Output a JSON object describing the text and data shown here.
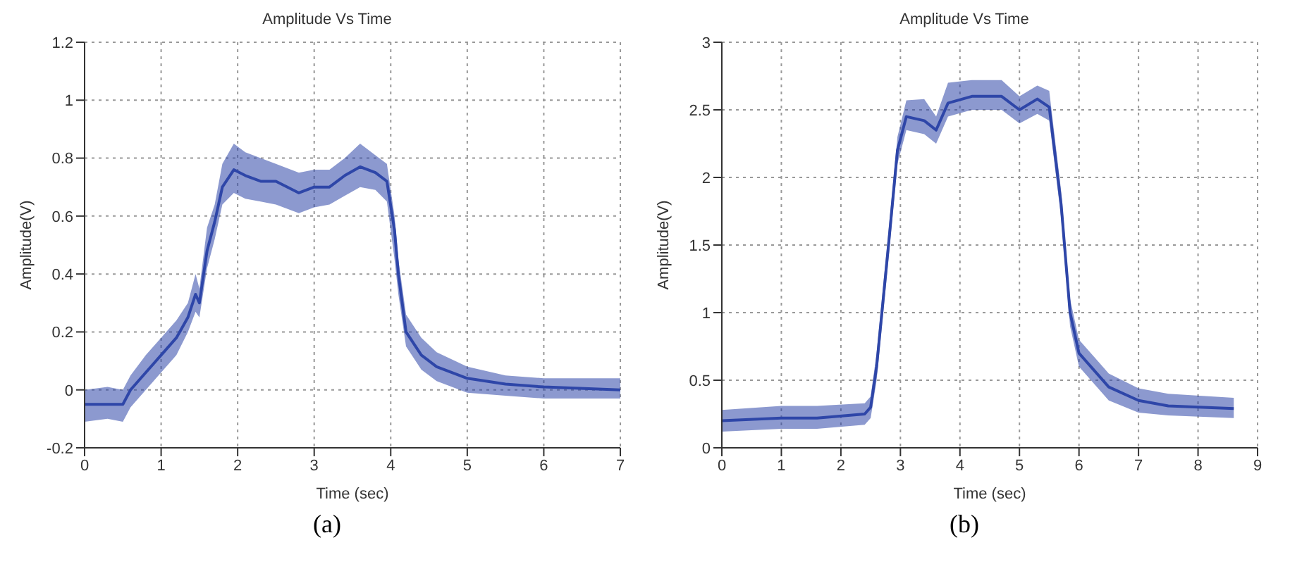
{
  "chart_data": [
    {
      "type": "line",
      "title": "Amplitude Vs Time",
      "xlabel": "Time (sec)",
      "ylabel": "Amplitude(V)",
      "annotations": [
        "(a)"
      ],
      "grid": true,
      "xlim": [
        0,
        7
      ],
      "xticks": [
        0,
        1,
        2,
        3,
        4,
        5,
        6,
        7
      ],
      "ylim": [
        -0.2,
        1.2
      ],
      "yticks": [
        -0.2,
        0,
        0.2,
        0.4,
        0.6,
        0.8,
        1,
        1.2
      ],
      "x": [
        0,
        0.3,
        0.5,
        0.6,
        0.8,
        1.0,
        1.2,
        1.35,
        1.45,
        1.5,
        1.6,
        1.7,
        1.8,
        1.95,
        2.1,
        2.3,
        2.5,
        2.8,
        3.0,
        3.2,
        3.4,
        3.6,
        3.8,
        3.95,
        4.05,
        4.1,
        4.2,
        4.4,
        4.6,
        5.0,
        5.5,
        6.0,
        7.0
      ],
      "series": [
        {
          "color": "#2e46a8",
          "values": [
            -0.05,
            -0.05,
            -0.05,
            0.0,
            0.06,
            0.12,
            0.18,
            0.25,
            0.33,
            0.3,
            0.48,
            0.58,
            0.7,
            0.76,
            0.74,
            0.72,
            0.72,
            0.68,
            0.7,
            0.7,
            0.74,
            0.77,
            0.75,
            0.72,
            0.55,
            0.4,
            0.2,
            0.12,
            0.08,
            0.04,
            0.02,
            0.01,
            0.0
          ],
          "lower": [
            -0.11,
            -0.1,
            -0.11,
            -0.06,
            0.0,
            0.06,
            0.12,
            0.2,
            0.27,
            0.25,
            0.42,
            0.52,
            0.64,
            0.68,
            0.66,
            0.65,
            0.64,
            0.61,
            0.63,
            0.64,
            0.67,
            0.7,
            0.69,
            0.65,
            0.45,
            0.33,
            0.15,
            0.07,
            0.03,
            -0.01,
            -0.02,
            -0.03,
            -0.03
          ],
          "upper": [
            0.0,
            0.01,
            0.0,
            0.05,
            0.12,
            0.18,
            0.24,
            0.3,
            0.4,
            0.35,
            0.56,
            0.64,
            0.78,
            0.85,
            0.82,
            0.8,
            0.78,
            0.75,
            0.76,
            0.76,
            0.8,
            0.85,
            0.81,
            0.78,
            0.6,
            0.45,
            0.26,
            0.18,
            0.13,
            0.08,
            0.05,
            0.04,
            0.04
          ]
        }
      ]
    },
    {
      "type": "line",
      "title": "Amplitude Vs Time",
      "xlabel": "Time (sec)",
      "ylabel": "Amplitude(V)",
      "annotations": [
        "(b)"
      ],
      "grid": true,
      "xlim": [
        0,
        9
      ],
      "xticks": [
        0,
        1,
        2,
        3,
        4,
        5,
        6,
        7,
        8,
        9
      ],
      "ylim": [
        0,
        3
      ],
      "yticks": [
        0,
        0.5,
        1,
        1.5,
        2,
        2.5,
        3
      ],
      "x": [
        0,
        1,
        1.6,
        2.4,
        2.5,
        2.6,
        2.8,
        2.95,
        3.1,
        3.4,
        3.6,
        3.8,
        4.2,
        4.7,
        5.0,
        5.3,
        5.5,
        5.7,
        5.85,
        6.0,
        6.5,
        7.0,
        7.5,
        8.6
      ],
      "series": [
        {
          "color": "#2e46a8",
          "values": [
            0.2,
            0.22,
            0.22,
            0.25,
            0.3,
            0.6,
            1.5,
            2.2,
            2.45,
            2.42,
            2.35,
            2.55,
            2.6,
            2.6,
            2.5,
            2.58,
            2.52,
            1.8,
            1.0,
            0.7,
            0.45,
            0.35,
            0.31,
            0.29
          ],
          "lower": [
            0.12,
            0.14,
            0.14,
            0.17,
            0.22,
            0.5,
            1.4,
            2.1,
            2.35,
            2.32,
            2.25,
            2.45,
            2.5,
            2.5,
            2.4,
            2.47,
            2.42,
            1.7,
            0.9,
            0.6,
            0.35,
            0.26,
            0.24,
            0.22
          ],
          "upper": [
            0.28,
            0.31,
            0.31,
            0.33,
            0.38,
            0.7,
            1.6,
            2.3,
            2.57,
            2.58,
            2.45,
            2.7,
            2.72,
            2.72,
            2.6,
            2.68,
            2.64,
            1.9,
            1.1,
            0.8,
            0.55,
            0.44,
            0.4,
            0.37
          ]
        }
      ]
    }
  ]
}
